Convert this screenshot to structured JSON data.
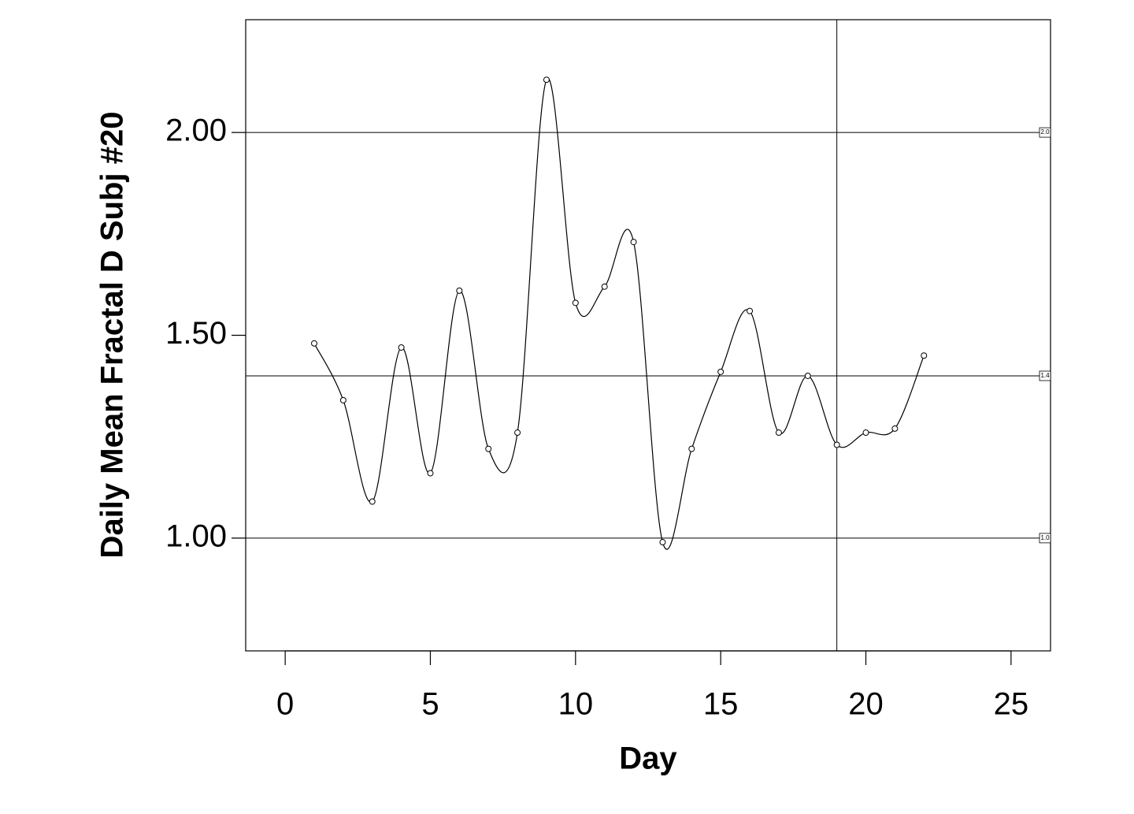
{
  "chart_data": {
    "type": "line",
    "interpolation": "spline",
    "markers": true,
    "x_label": "Day",
    "y_label": "Daily Mean Fractal D Subj #20",
    "x": [
      1,
      2,
      3,
      4,
      5,
      6,
      7,
      8,
      9,
      10,
      11,
      12,
      13,
      14,
      15,
      16,
      17,
      18,
      19,
      20,
      21,
      22
    ],
    "series": [
      {
        "color": "#000000",
        "values": [
          1.48,
          1.34,
          1.09,
          1.47,
          1.16,
          1.61,
          1.22,
          1.26,
          2.13,
          1.58,
          1.62,
          1.73,
          0.99,
          1.22,
          1.41,
          1.56,
          1.26,
          1.4,
          1.23,
          1.26,
          1.27,
          1.45
        ]
      }
    ],
    "xlim": [
      -1.36,
      26.36
    ],
    "ylim": [
      0.722,
      2.278
    ],
    "xticks": [
      0,
      5,
      10,
      15,
      20,
      25
    ],
    "yticks": [
      {
        "value": 1,
        "label": "1.00"
      },
      {
        "value": 1.5,
        "label": "1.50"
      },
      {
        "value": 2,
        "label": "2.00"
      }
    ],
    "reference_lines": [
      {
        "value": 2,
        "label": "2.0"
      },
      {
        "value": 1.4,
        "label": "1.4"
      },
      {
        "value": 1,
        "label": "1.0"
      }
    ],
    "x_reference_lines": [
      19
    ]
  }
}
